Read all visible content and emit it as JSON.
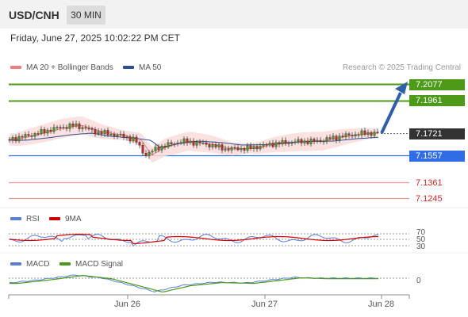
{
  "header": {
    "pair": "USD/CNH",
    "timeframe": "30 MIN"
  },
  "datetime": "Friday, June 27, 2025 10:02:22 PM CET",
  "price_panel": {
    "legend": [
      {
        "label": "MA 20 + Bollinger Bands",
        "color": "#f08080"
      },
      {
        "label": "MA 50",
        "color": "#2f4f8f"
      }
    ],
    "credit": "Research © 2025 Trading Central",
    "levels": {
      "target2": "7.2077",
      "target1": "7.1961",
      "current": "7.1721",
      "pivot": "7.1557",
      "support1": "7.1361",
      "support2": "7.1245"
    }
  },
  "rsi_panel": {
    "legend": [
      {
        "label": "RSI",
        "color": "#5b7fd6"
      },
      {
        "label": "9MA",
        "color": "#d00000"
      }
    ],
    "levels": [
      "70",
      "50",
      "30"
    ]
  },
  "macd_panel": {
    "legend": [
      {
        "label": "MACD",
        "color": "#5b7fd6"
      },
      {
        "label": "MACD Signal",
        "color": "#4c9a17"
      }
    ],
    "zero_label": "0"
  },
  "xaxis": [
    "Jun 26",
    "Jun 27",
    "Jun 28"
  ],
  "colors": {
    "up": "#4c9a17",
    "down": "#c62828",
    "candle": "#333333",
    "band": "#fbdcdc"
  }
}
